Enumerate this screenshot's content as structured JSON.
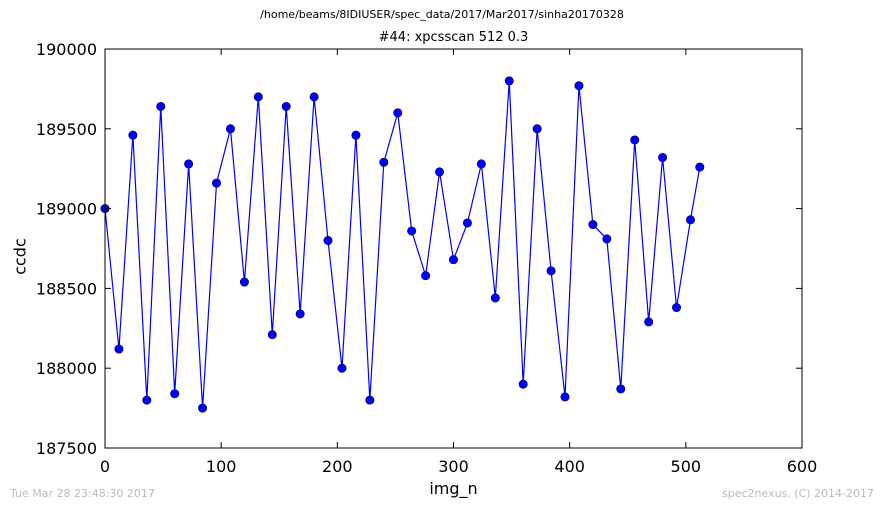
{
  "header": {
    "suptitle": "/home/beams/8IDIUSER/spec_data/2017/Mar2017/sinha20170328"
  },
  "footer": {
    "left": "Tue Mar 28 23:48:30 2017",
    "right": "spec2nexus, (C) 2014-2017"
  },
  "chart_data": {
    "type": "line",
    "title": "#44: xpcsscan 512 0.3",
    "xlabel": "img_n",
    "ylabel": "ccdc",
    "xlim": [
      0,
      600
    ],
    "ylim": [
      187500,
      190000
    ],
    "xticks": [
      0,
      100,
      200,
      300,
      400,
      500,
      600
    ],
    "yticks": [
      187500,
      188000,
      188500,
      189000,
      189500,
      190000
    ],
    "grid": false,
    "line_color": "#0000ff",
    "marker_color": "#0000ff",
    "marker": "circle",
    "series": [
      {
        "x": [
          0,
          12,
          24,
          36,
          48,
          60,
          72,
          84,
          96,
          108,
          120,
          132,
          144,
          156,
          168,
          180,
          192,
          204,
          216,
          228,
          240,
          252,
          264,
          276,
          288,
          300,
          312,
          324,
          336,
          348,
          360,
          372,
          384,
          396,
          408,
          420,
          432,
          444,
          456,
          468,
          480,
          492,
          504,
          512
        ],
        "y": [
          189000,
          188120,
          189460,
          187800,
          189640,
          187840,
          189280,
          187750,
          189160,
          189500,
          188540,
          189700,
          188210,
          189640,
          188340,
          189700,
          188800,
          188000,
          189460,
          187800,
          189290,
          189600,
          188860,
          188580,
          189230,
          188680,
          188910,
          189280,
          188440,
          189800,
          187900,
          189500,
          188610,
          187820,
          189770,
          188900,
          188810,
          187870,
          189430,
          188290,
          189320,
          188380,
          188930,
          189260
        ]
      }
    ]
  }
}
